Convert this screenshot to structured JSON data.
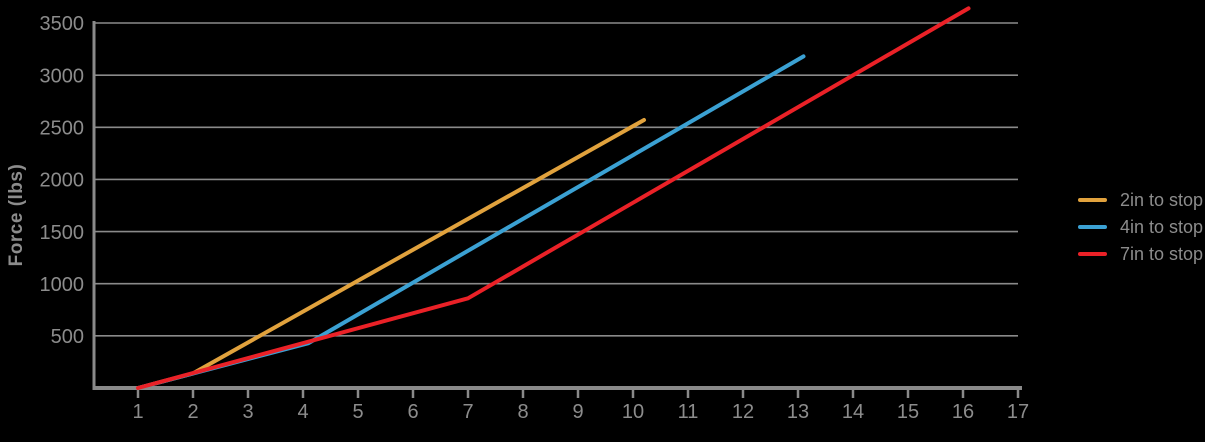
{
  "colors": {
    "background": "#000000",
    "grid": "#8a8a8a",
    "axis": "#8a8a8a",
    "text": "#8c8c8c",
    "orange": "#E1A23D",
    "blue": "#3BA1D3",
    "red": "#EA2127"
  },
  "chart_data": {
    "type": "line",
    "title": "",
    "xlabel": "",
    "ylabel": "Force (lbs)",
    "xlim": [
      1,
      17
    ],
    "ylim": [
      0,
      3500
    ],
    "grid": "horizontal-only",
    "legend_position": "right",
    "x_ticks": [
      1,
      2,
      3,
      4,
      5,
      6,
      7,
      8,
      9,
      10,
      11,
      12,
      13,
      14,
      15,
      16,
      17
    ],
    "y_ticks": [
      500,
      1000,
      1500,
      2000,
      2500,
      3000,
      3500
    ],
    "series": [
      {
        "name": "2in to stop",
        "color": "#E1A23D",
        "points": [
          [
            1,
            0
          ],
          [
            2,
            140
          ],
          [
            10.2,
            2570
          ]
        ]
      },
      {
        "name": "4in to stop",
        "color": "#3BA1D3",
        "points": [
          [
            1,
            0
          ],
          [
            4.1,
            430
          ],
          [
            13.1,
            3180
          ]
        ]
      },
      {
        "name": "7in to stop",
        "color": "#EA2127",
        "points": [
          [
            1,
            0
          ],
          [
            7,
            860
          ],
          [
            16.1,
            3640
          ]
        ]
      }
    ]
  }
}
